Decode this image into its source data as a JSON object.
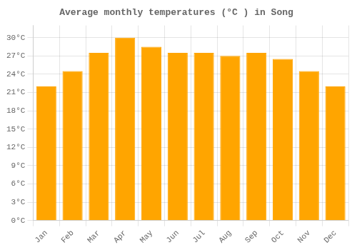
{
  "chart_data": {
    "type": "bar",
    "title": "Average monthly temperatures (°C ) in Song",
    "categories": [
      "Jan",
      "Feb",
      "Mar",
      "Apr",
      "May",
      "Jun",
      "Jul",
      "Aug",
      "Sep",
      "Oct",
      "Nov",
      "Dec"
    ],
    "values": [
      22,
      24.5,
      27.5,
      30,
      28.5,
      27.5,
      27.5,
      27,
      27.5,
      26.5,
      24.5,
      22
    ],
    "color": "#FFA500",
    "ylim": [
      0,
      32
    ],
    "yticks": [
      {
        "value": 0,
        "label": "0°C"
      },
      {
        "value": 3,
        "label": "3°C"
      },
      {
        "value": 6,
        "label": "6°C"
      },
      {
        "value": 9,
        "label": "9°C"
      },
      {
        "value": 12,
        "label": "12°C"
      },
      {
        "value": 15,
        "label": "15°C"
      },
      {
        "value": 18,
        "label": "18°C"
      },
      {
        "value": 21,
        "label": "21°C"
      },
      {
        "value": 24,
        "label": "24°C"
      },
      {
        "value": 27,
        "label": "27°C"
      },
      {
        "value": 30,
        "label": "30°C"
      }
    ],
    "grid": true
  }
}
